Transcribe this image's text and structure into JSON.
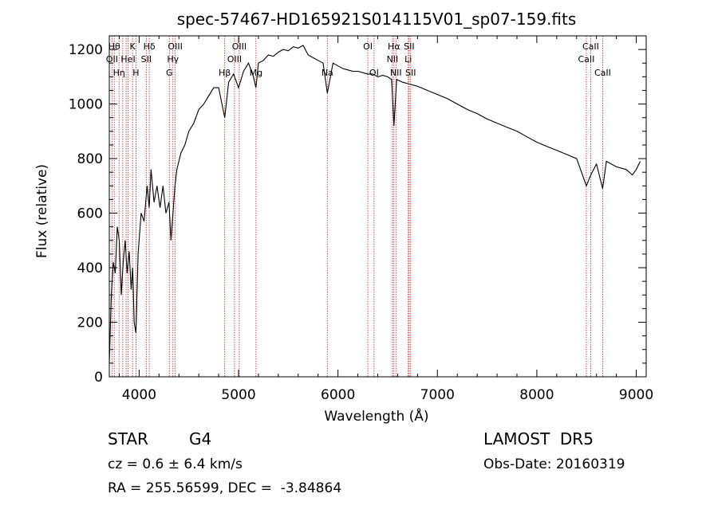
{
  "chart_data": {
    "type": "line",
    "title": "spec-57467-HD165921S014115V01_sp07-159.fits",
    "xlabel": "Wavelength (Å)",
    "ylabel": "Flux (relative)",
    "xlim": [
      3700,
      9100
    ],
    "ylim": [
      0,
      1250
    ],
    "xticks": [
      4000,
      5000,
      6000,
      7000,
      8000,
      9000
    ],
    "yticks": [
      0,
      200,
      400,
      600,
      800,
      1000,
      1200
    ],
    "grid": false,
    "line_color": "#000000",
    "marker_color": "#cc2222",
    "series": [
      {
        "x": [
          3700,
          3720,
          3740,
          3760,
          3780,
          3800,
          3820,
          3840,
          3860,
          3880,
          3900,
          3920,
          3935,
          3950,
          3968,
          3990,
          4020,
          4050,
          4080,
          4101,
          4120,
          4150,
          4180,
          4210,
          4240,
          4270,
          4300,
          4320,
          4340,
          4360,
          4380,
          4420,
          4460,
          4500,
          4550,
          4600,
          4650,
          4700,
          4750,
          4800,
          4861,
          4900,
          4950,
          5000,
          5050,
          5100,
          5150,
          5175,
          5200,
          5250,
          5300,
          5350,
          5400,
          5450,
          5500,
          5550,
          5600,
          5650,
          5700,
          5750,
          5800,
          5850,
          5893,
          5950,
          6000,
          6050,
          6100,
          6150,
          6200,
          6250,
          6300,
          6350,
          6400,
          6450,
          6500,
          6540,
          6563,
          6590,
          6650,
          6700,
          6750,
          6800,
          6900,
          7000,
          7100,
          7200,
          7300,
          7400,
          7500,
          7600,
          7700,
          7800,
          7900,
          8000,
          8100,
          8200,
          8300,
          8400,
          8498,
          8542,
          8600,
          8662,
          8700,
          8800,
          8900,
          8960,
          9000,
          9040
        ],
        "y": [
          50,
          300,
          420,
          380,
          550,
          500,
          300,
          420,
          500,
          380,
          460,
          320,
          400,
          200,
          160,
          450,
          600,
          570,
          700,
          620,
          760,
          640,
          700,
          620,
          700,
          600,
          640,
          500,
          600,
          700,
          760,
          820,
          850,
          900,
          930,
          980,
          1000,
          1030,
          1060,
          1060,
          950,
          1080,
          1110,
          1060,
          1120,
          1150,
          1100,
          1060,
          1150,
          1160,
          1180,
          1175,
          1190,
          1200,
          1195,
          1210,
          1205,
          1215,
          1180,
          1170,
          1160,
          1150,
          1040,
          1150,
          1140,
          1130,
          1125,
          1120,
          1120,
          1115,
          1110,
          1110,
          1100,
          1105,
          1100,
          1090,
          920,
          1090,
          1080,
          1075,
          1070,
          1065,
          1050,
          1035,
          1020,
          1000,
          980,
          965,
          945,
          930,
          915,
          900,
          880,
          860,
          845,
          830,
          815,
          800,
          700,
          740,
          780,
          690,
          790,
          770,
          760,
          740,
          760,
          790
        ]
      }
    ],
    "lines": [
      {
        "wl": 3727,
        "label": "OII",
        "row": 2
      },
      {
        "wl": 3750,
        "label": "Hθ",
        "row": 1
      },
      {
        "wl": 3798,
        "label": "Hη",
        "row": 3
      },
      {
        "wl": 3835,
        "label": "",
        "row": 0
      },
      {
        "wl": 3869,
        "label": "",
        "row": 0
      },
      {
        "wl": 3889,
        "label": "HeI",
        "row": 2
      },
      {
        "wl": 3934,
        "label": "K",
        "row": 1
      },
      {
        "wl": 3968,
        "label": "H",
        "row": 3
      },
      {
        "wl": 4072,
        "label": "SII",
        "row": 2
      },
      {
        "wl": 4102,
        "label": "Hδ",
        "row": 1
      },
      {
        "wl": 4304,
        "label": "G",
        "row": 3
      },
      {
        "wl": 4340,
        "label": "Hγ",
        "row": 2
      },
      {
        "wl": 4363,
        "label": "OIII",
        "row": 1
      },
      {
        "wl": 4861,
        "label": "Hβ",
        "row": 3
      },
      {
        "wl": 4959,
        "label": "OIII",
        "row": 2
      },
      {
        "wl": 5007,
        "label": "OIII",
        "row": 1
      },
      {
        "wl": 5175,
        "label": "Mg",
        "row": 3
      },
      {
        "wl": 5893,
        "label": "Na",
        "row": 3
      },
      {
        "wl": 6300,
        "label": "OI",
        "row": 1
      },
      {
        "wl": 6363,
        "label": "OI",
        "row": 3
      },
      {
        "wl": 6548,
        "label": "NII",
        "row": 2
      },
      {
        "wl": 6563,
        "label": "Hα",
        "row": 1
      },
      {
        "wl": 6583,
        "label": "NII",
        "row": 3
      },
      {
        "wl": 6707,
        "label": "Li",
        "row": 2
      },
      {
        "wl": 6716,
        "label": "SII",
        "row": 1
      },
      {
        "wl": 6731,
        "label": "SII",
        "row": 3
      },
      {
        "wl": 8498,
        "label": "CaII",
        "row": 2
      },
      {
        "wl": 8542,
        "label": "CaII",
        "row": 1
      },
      {
        "wl": 8662,
        "label": "CaII",
        "row": 3
      }
    ]
  },
  "info": {
    "class_label": "STAR",
    "subclass": "G4",
    "cz": "cz = 0.6 ± 6.4 km/s",
    "coords": "RA = 255.56599, DEC =  -3.84864",
    "survey": "LAMOST  DR5",
    "obs_date": "Obs-Date: 20160319"
  }
}
